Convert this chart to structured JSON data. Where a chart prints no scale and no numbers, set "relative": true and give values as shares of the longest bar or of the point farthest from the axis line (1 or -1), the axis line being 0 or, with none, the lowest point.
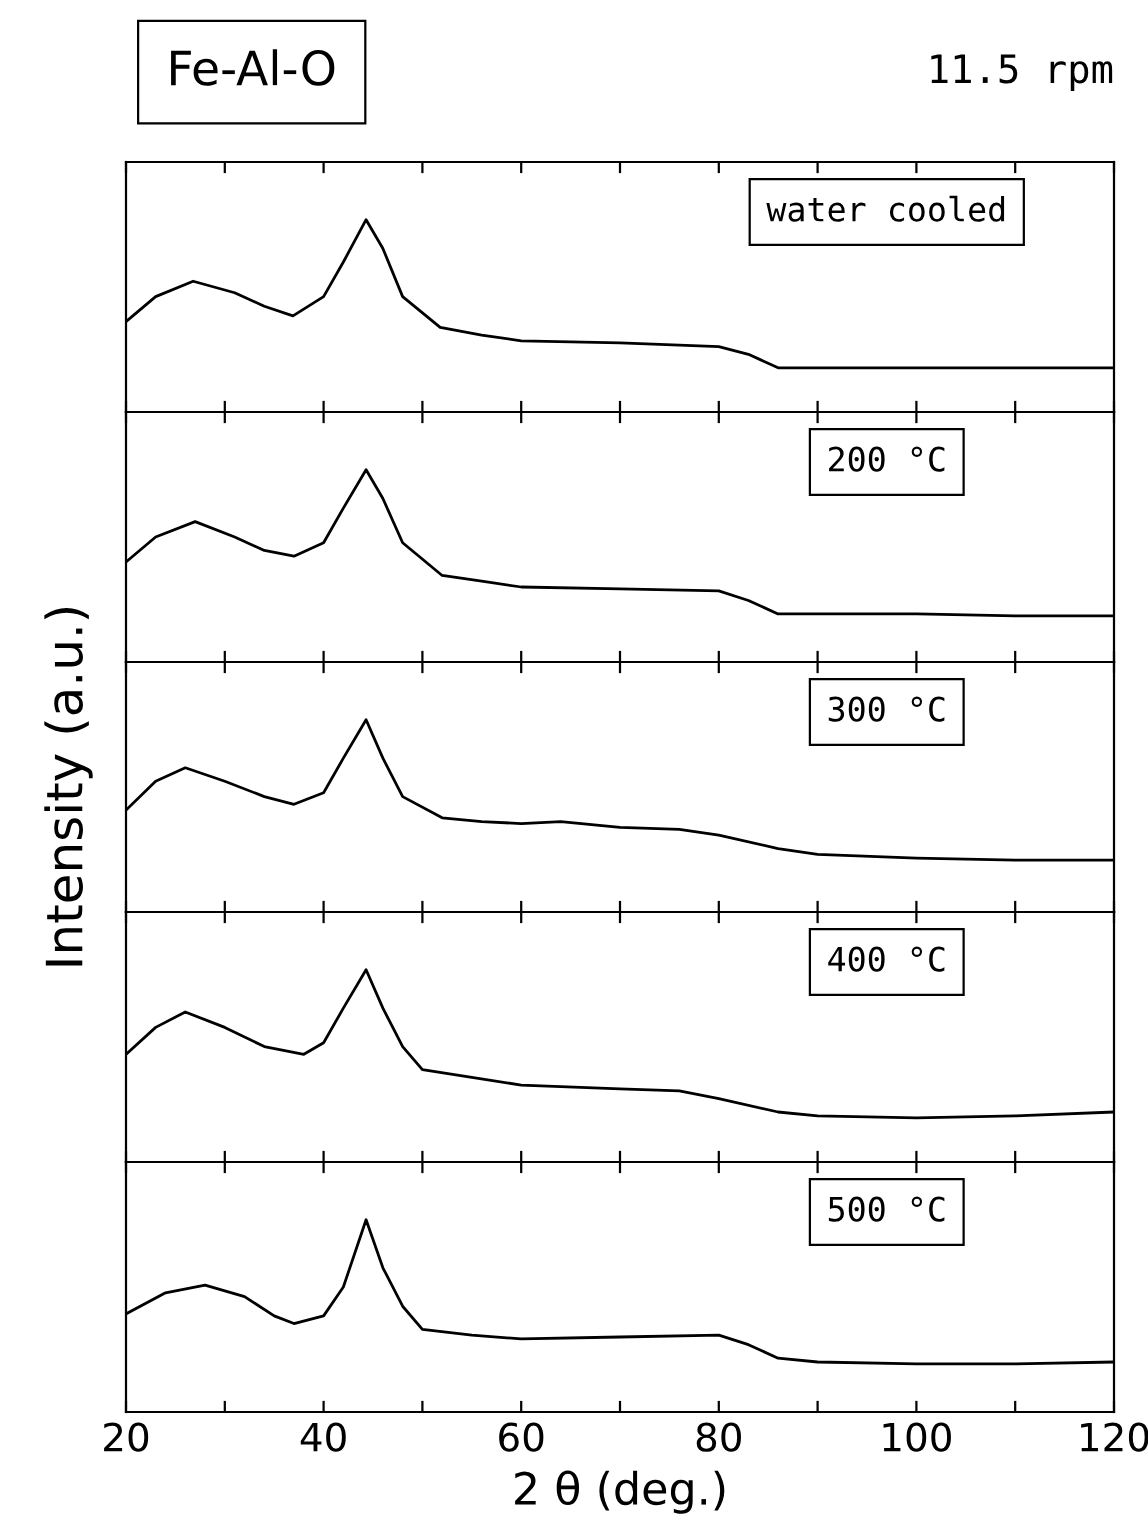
{
  "chart_data": [
    {
      "type": "line",
      "title": "Fe-Al-O",
      "subtitle": "11.5 rpm",
      "relative": true,
      "annotations": [
        "water cooled"
      ],
      "xlim": [
        20,
        120
      ],
      "xticks": [
        20,
        {
          "value": 30,
          "label": null
        },
        40,
        {
          "value": 50,
          "label": null
        },
        60,
        {
          "value": 70,
          "label": null
        },
        80,
        {
          "value": 90,
          "label": null
        },
        100,
        {
          "value": 110,
          "label": null
        },
        120
      ],
      "tick_labels": false,
      "grid": false,
      "legend": false,
      "series": [
        {
          "color": "#000000",
          "x": [
            20,
            23,
            26.8,
            31,
            34,
            36.9,
            40,
            42,
            44.3,
            46,
            48,
            51.8,
            56,
            60,
            70,
            80,
            83,
            86,
            90,
            100,
            110,
            120
          ],
          "values": [
            0.47,
            0.6,
            0.68,
            0.62,
            0.55,
            0.5,
            0.6,
            0.78,
            1,
            0.85,
            0.6,
            0.44,
            0.4,
            0.37,
            0.36,
            0.34,
            0.3,
            0.23,
            0.23,
            0.23,
            0.23,
            0.23
          ]
        }
      ]
    },
    {
      "type": "line",
      "relative": true,
      "annotations": [
        "200 °C"
      ],
      "xlim": [
        20,
        120
      ],
      "xticks": [
        20,
        {
          "value": 30,
          "label": null
        },
        40,
        {
          "value": 50,
          "label": null
        },
        60,
        {
          "value": 70,
          "label": null
        },
        80,
        {
          "value": 90,
          "label": null
        },
        100,
        {
          "value": 110,
          "label": null
        },
        120
      ],
      "tick_labels": false,
      "grid": false,
      "legend": false,
      "series": [
        {
          "color": "#000000",
          "x": [
            20,
            23,
            27,
            31,
            34,
            37,
            40,
            42,
            44.3,
            46,
            48,
            52,
            56,
            60,
            70,
            80,
            83,
            86,
            90,
            100,
            110,
            120
          ],
          "values": [
            0.52,
            0.65,
            0.73,
            0.65,
            0.58,
            0.55,
            0.62,
            0.8,
            1,
            0.85,
            0.62,
            0.45,
            0.42,
            0.39,
            0.38,
            0.37,
            0.32,
            0.25,
            0.25,
            0.25,
            0.24,
            0.24
          ]
        }
      ]
    },
    {
      "type": "line",
      "relative": true,
      "ylabel": "Intensity (a.u.)",
      "annotations": [
        "300 °C"
      ],
      "xlim": [
        20,
        120
      ],
      "xticks": [
        20,
        {
          "value": 30,
          "label": null
        },
        40,
        {
          "value": 50,
          "label": null
        },
        60,
        {
          "value": 70,
          "label": null
        },
        80,
        {
          "value": 90,
          "label": null
        },
        100,
        {
          "value": 110,
          "label": null
        },
        120
      ],
      "tick_labels": false,
      "grid": false,
      "legend": false,
      "series": [
        {
          "color": "#000000",
          "x": [
            20,
            23,
            26,
            30,
            34,
            37,
            40,
            42,
            44.3,
            46,
            48,
            52,
            56,
            60,
            64,
            70,
            76,
            80,
            86,
            90,
            100,
            110,
            120
          ],
          "values": [
            0.53,
            0.68,
            0.75,
            0.68,
            0.6,
            0.56,
            0.62,
            0.8,
            1,
            0.8,
            0.6,
            0.49,
            0.47,
            0.46,
            0.47,
            0.44,
            0.43,
            0.4,
            0.33,
            0.3,
            0.28,
            0.27,
            0.27
          ]
        }
      ]
    },
    {
      "type": "line",
      "relative": true,
      "annotations": [
        "400 °C"
      ],
      "xlim": [
        20,
        120
      ],
      "xticks": [
        20,
        {
          "value": 30,
          "label": null
        },
        40,
        {
          "value": 50,
          "label": null
        },
        60,
        {
          "value": 70,
          "label": null
        },
        80,
        {
          "value": 90,
          "label": null
        },
        100,
        {
          "value": 110,
          "label": null
        },
        120
      ],
      "tick_labels": false,
      "grid": false,
      "legend": false,
      "series": [
        {
          "color": "#000000",
          "x": [
            20,
            23,
            26,
            30,
            34,
            38,
            40,
            42,
            44.3,
            46,
            48,
            50,
            55,
            60,
            70,
            76,
            80,
            86,
            90,
            100,
            110,
            120
          ],
          "values": [
            0.56,
            0.7,
            0.78,
            0.7,
            0.6,
            0.56,
            0.62,
            0.8,
            1,
            0.8,
            0.6,
            0.48,
            0.44,
            0.4,
            0.38,
            0.37,
            0.33,
            0.26,
            0.24,
            0.23,
            0.24,
            0.26
          ]
        }
      ]
    },
    {
      "type": "line",
      "relative": true,
      "xlabel": "2 θ (deg.)",
      "annotations": [
        "500 °C"
      ],
      "xlim": [
        20,
        120
      ],
      "xticks": [
        20,
        {
          "value": 30,
          "label": null
        },
        40,
        {
          "value": 50,
          "label": null
        },
        60,
        {
          "value": 70,
          "label": null
        },
        80,
        {
          "value": 90,
          "label": null
        },
        100,
        {
          "value": 110,
          "label": null
        },
        120
      ],
      "tick_labels": "x",
      "grid": false,
      "legend": false,
      "series": [
        {
          "color": "#000000",
          "x": [
            20,
            24,
            28,
            32,
            35,
            37,
            40,
            42,
            44.3,
            46,
            48,
            50,
            55,
            60,
            70,
            80,
            83,
            86,
            90,
            100,
            110,
            120
          ],
          "values": [
            0.51,
            0.62,
            0.66,
            0.6,
            0.5,
            0.46,
            0.5,
            0.65,
            1,
            0.75,
            0.55,
            0.43,
            0.4,
            0.38,
            0.39,
            0.4,
            0.35,
            0.28,
            0.26,
            0.25,
            0.25,
            0.26
          ]
        }
      ]
    }
  ]
}
